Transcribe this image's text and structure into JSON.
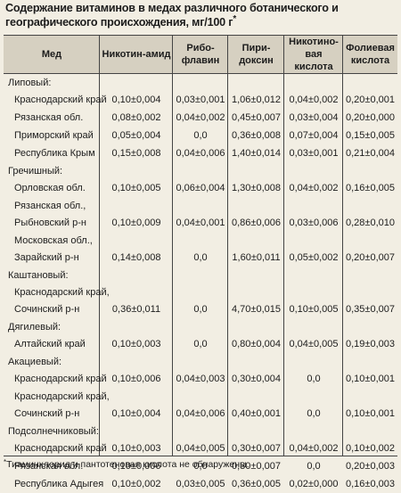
{
  "title": "Содержание витаминов в медах различного ботанического и географического происхождения, мг/100 г",
  "title_mark": "*",
  "columns": {
    "name": "Мед",
    "c1": "Никотин-амид",
    "c2": "Рибо-флавин",
    "c3": "Пири-доксин",
    "c4": "Никотино-вая кислота",
    "c5": "Фолиевая кислота"
  },
  "groups": [
    {
      "name": "Липовый:",
      "rows": [
        {
          "name": "Краснодарский край",
          "v": [
            "0,10±0,004",
            "0,03±0,001",
            "1,06±0,012",
            "0,04±0,002",
            "0,20±0,001"
          ]
        },
        {
          "name": "Рязанская обл.",
          "v": [
            "0,08±0,002",
            "0,04±0,002",
            "0,45±0,007",
            "0,03±0,004",
            "0,20±0,000"
          ]
        },
        {
          "name": "Приморский край",
          "v": [
            "0,05±0,004",
            "0,0",
            "0,36±0,008",
            "0,07±0,004",
            "0,15±0,005"
          ]
        },
        {
          "name": "Республика Крым",
          "v": [
            "0,15±0,008",
            "0,04±0,006",
            "1,40±0,014",
            "0,03±0,001",
            "0,21±0,004"
          ]
        }
      ]
    },
    {
      "name": "Гречишный:",
      "rows": [
        {
          "name": "Орловская обл.",
          "v": [
            "0,10±0,005",
            "0,06±0,004",
            "1,30±0,008",
            "0,04±0,002",
            "0,16±0,005"
          ]
        },
        {
          "name": "Рязанская обл.,",
          "name2": "Рыбновский р-н",
          "v": [
            "0,10±0,009",
            "0,04±0,001",
            "0,86±0,006",
            "0,03±0,006",
            "0,28±0,010"
          ]
        },
        {
          "name": "Московская обл.,",
          "name2": "Зарайский р-н",
          "v": [
            "0,14±0,008",
            "0,0",
            "1,60±0,011",
            "0,05±0,002",
            "0,20±0,007"
          ]
        }
      ]
    },
    {
      "name": "Каштановый:",
      "rows": [
        {
          "name": "Краснодарский край,",
          "name2": "Сочинский р-н",
          "v": [
            "0,36±0,011",
            "0,0",
            "4,70±0,015",
            "0,10±0,005",
            "0,35±0,007"
          ]
        }
      ]
    },
    {
      "name": "Дягилевый:",
      "rows": [
        {
          "name": "Алтайский край",
          "v": [
            "0,10±0,003",
            "0,0",
            "0,80±0,004",
            "0,04±0,005",
            "0,19±0,003"
          ]
        }
      ]
    },
    {
      "name": "Акациевый:",
      "rows": [
        {
          "name": "Краснодарский край",
          "v": [
            "0,10±0,006",
            "0,04±0,003",
            "0,30±0,004",
            "0,0",
            "0,10±0,001"
          ]
        },
        {
          "name": "Краснодарский край,",
          "name2": "Сочинский р-н",
          "v": [
            "0,10±0,004",
            "0,04±0,006",
            "0,40±0,001",
            "0,0",
            "0,10±0,001"
          ]
        }
      ]
    },
    {
      "name": "Подсолнечниковый:",
      "rows": [
        {
          "name": "Краснодарский край",
          "v": [
            "0,10±0,003",
            "0,04±0,005",
            "0,30±0,007",
            "0,04±0,002",
            "0,10±0,002"
          ]
        },
        {
          "name": "Рязанская обл.",
          "v": [
            "0,10±0,006",
            "0,0",
            "0,30±0,007",
            "0,0",
            "0,20±0,003"
          ]
        },
        {
          "name": "Республика Адыгея",
          "v": [
            "0,10±0,002",
            "0,03±0,005",
            "0,36±0,005",
            "0,02±0,000",
            "0,16±0,003"
          ]
        }
      ]
    }
  ],
  "footnote_mark": "*",
  "footnote": "Тиаминхлорид и пантотеновая кислота не обнаружены."
}
